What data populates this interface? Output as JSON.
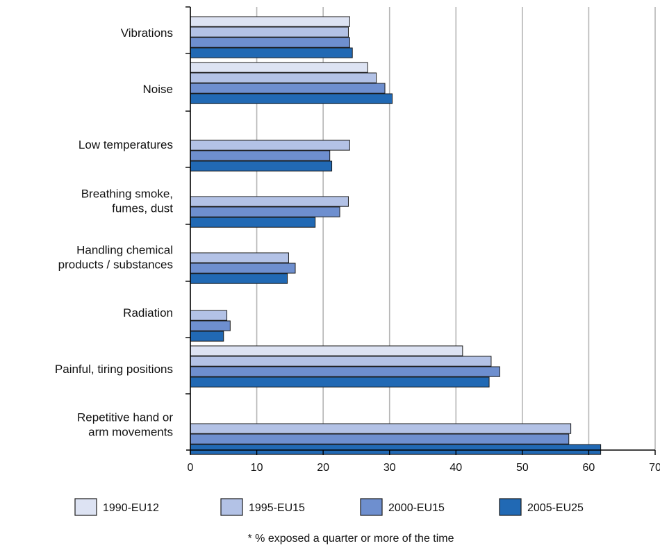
{
  "chart_data": {
    "type": "bar",
    "orientation": "horizontal",
    "categories": [
      [
        "Vibrations"
      ],
      [
        "Noise"
      ],
      [
        "Low temperatures"
      ],
      [
        "Breathing smoke,",
        "fumes, dust"
      ],
      [
        "Handling chemical",
        "products / substances"
      ],
      [
        "Radiation"
      ],
      [
        "Painful, tiring positions"
      ],
      [
        "Repetitive hand or",
        "arm movements"
      ]
    ],
    "series": [
      {
        "name": "1990-EU12",
        "color": "#dde3f3",
        "values": [
          24,
          26.7,
          null,
          null,
          null,
          null,
          41,
          null
        ]
      },
      {
        "name": "1995-EU15",
        "color": "#b3c2e6",
        "values": [
          23.8,
          28,
          24,
          23.8,
          14.8,
          5.5,
          45.3,
          57.3
        ]
      },
      {
        "name": "2000-EU15",
        "color": "#6e8fcf",
        "values": [
          24,
          29.3,
          21,
          22.5,
          15.8,
          6,
          46.6,
          57
        ]
      },
      {
        "name": "2005-EU25",
        "color": "#2169b4",
        "values": [
          24.4,
          30.4,
          21.3,
          18.8,
          14.6,
          5,
          45,
          61.8
        ]
      }
    ],
    "xlim": [
      0,
      70
    ],
    "xticks": [
      0,
      10,
      20,
      30,
      40,
      50,
      60,
      70
    ],
    "grid": true,
    "legend_position": "bottom",
    "note": "* % exposed a quarter or more of the time"
  }
}
